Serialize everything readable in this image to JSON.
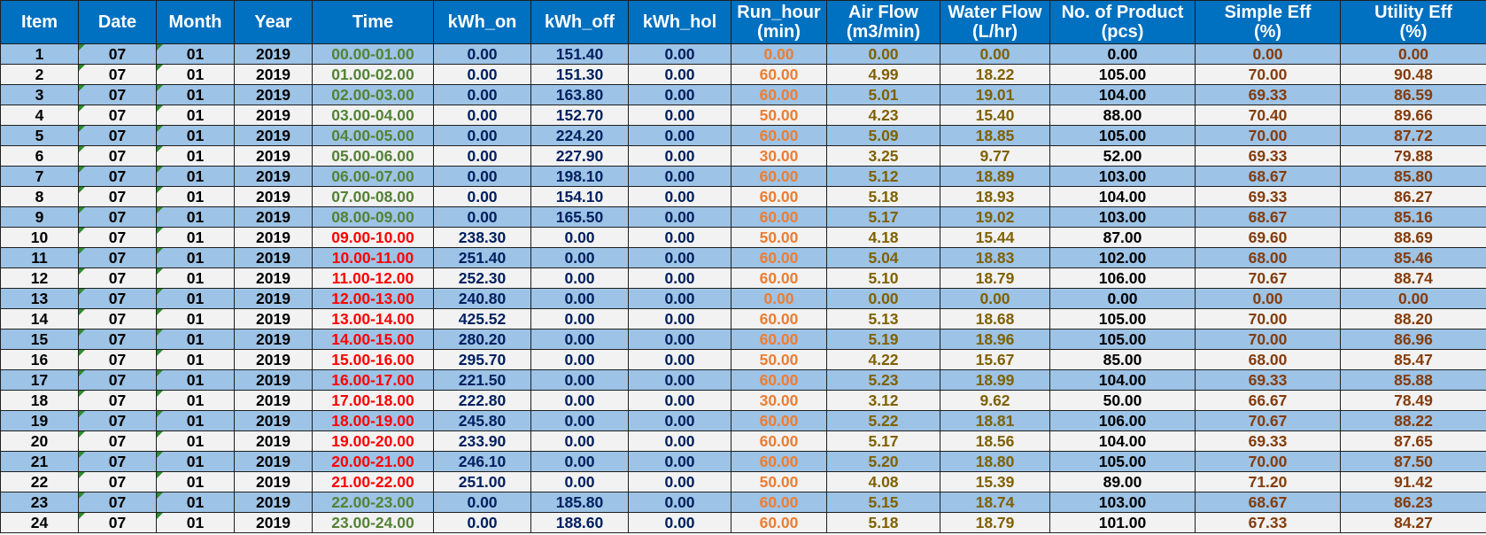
{
  "headers": [
    {
      "key": "item",
      "line1": "Item",
      "line2": ""
    },
    {
      "key": "date",
      "line1": "Date",
      "line2": ""
    },
    {
      "key": "month",
      "line1": "Month",
      "line2": ""
    },
    {
      "key": "year",
      "line1": "Year",
      "line2": ""
    },
    {
      "key": "time",
      "line1": "Time",
      "line2": ""
    },
    {
      "key": "kwh_on",
      "line1": "kWh_on",
      "line2": ""
    },
    {
      "key": "kwh_off",
      "line1": "kWh_off",
      "line2": ""
    },
    {
      "key": "kwh_hol",
      "line1": "kWh_hol",
      "line2": ""
    },
    {
      "key": "run_hour",
      "line1": "Run_hour",
      "line2": "(min)"
    },
    {
      "key": "air_flow",
      "line1": "Air Flow",
      "line2": "(m3/min)"
    },
    {
      "key": "water_flow",
      "line1": "Water Flow",
      "line2": "(L/hr)"
    },
    {
      "key": "products",
      "line1": "No. of Product",
      "line2": "(pcs)"
    },
    {
      "key": "simple_eff",
      "line1": "Simple Eff",
      "line2": "(%)"
    },
    {
      "key": "utility_eff",
      "line1": "Utility Eff",
      "line2": "(%)"
    }
  ],
  "colors": {
    "header_bg": "#0070c0",
    "header_text": "#ffffff",
    "row_odd_bg": "#9dc3e6",
    "row_even_bg": "#f2f2f2",
    "time_off_peak": "#548235",
    "time_on_peak": "#ff0000",
    "kwh_text": "#002060",
    "run_hour_text": "#ed7d31",
    "flow_text": "#806000",
    "eff_text": "#843c0c",
    "cell_marker": "#2e8b2e"
  },
  "rows": [
    {
      "item": "1",
      "date": "07",
      "month": "01",
      "year": "2019",
      "time": "00.00-01.00",
      "peak": "off",
      "kwh_on": "0.00",
      "kwh_off": "151.40",
      "kwh_hol": "0.00",
      "run_hour": "0.00",
      "air_flow": "0.00",
      "water_flow": "0.00",
      "products": "0.00",
      "simple_eff": "0.00",
      "utility_eff": "0.00"
    },
    {
      "item": "2",
      "date": "07",
      "month": "01",
      "year": "2019",
      "time": "01.00-02.00",
      "peak": "off",
      "kwh_on": "0.00",
      "kwh_off": "151.30",
      "kwh_hol": "0.00",
      "run_hour": "60.00",
      "air_flow": "4.99",
      "water_flow": "18.22",
      "products": "105.00",
      "simple_eff": "70.00",
      "utility_eff": "90.48"
    },
    {
      "item": "3",
      "date": "07",
      "month": "01",
      "year": "2019",
      "time": "02.00-03.00",
      "peak": "off",
      "kwh_on": "0.00",
      "kwh_off": "163.80",
      "kwh_hol": "0.00",
      "run_hour": "60.00",
      "air_flow": "5.01",
      "water_flow": "19.01",
      "products": "104.00",
      "simple_eff": "69.33",
      "utility_eff": "86.59"
    },
    {
      "item": "4",
      "date": "07",
      "month": "01",
      "year": "2019",
      "time": "03.00-04.00",
      "peak": "off",
      "kwh_on": "0.00",
      "kwh_off": "152.70",
      "kwh_hol": "0.00",
      "run_hour": "50.00",
      "air_flow": "4.23",
      "water_flow": "15.40",
      "products": "88.00",
      "simple_eff": "70.40",
      "utility_eff": "89.66"
    },
    {
      "item": "5",
      "date": "07",
      "month": "01",
      "year": "2019",
      "time": "04.00-05.00",
      "peak": "off",
      "kwh_on": "0.00",
      "kwh_off": "224.20",
      "kwh_hol": "0.00",
      "run_hour": "60.00",
      "air_flow": "5.09",
      "water_flow": "18.85",
      "products": "105.00",
      "simple_eff": "70.00",
      "utility_eff": "87.72"
    },
    {
      "item": "6",
      "date": "07",
      "month": "01",
      "year": "2019",
      "time": "05.00-06.00",
      "peak": "off",
      "kwh_on": "0.00",
      "kwh_off": "227.90",
      "kwh_hol": "0.00",
      "run_hour": "30.00",
      "air_flow": "3.25",
      "water_flow": "9.77",
      "products": "52.00",
      "simple_eff": "69.33",
      "utility_eff": "79.88"
    },
    {
      "item": "7",
      "date": "07",
      "month": "01",
      "year": "2019",
      "time": "06.00-07.00",
      "peak": "off",
      "kwh_on": "0.00",
      "kwh_off": "198.10",
      "kwh_hol": "0.00",
      "run_hour": "60.00",
      "air_flow": "5.12",
      "water_flow": "18.89",
      "products": "103.00",
      "simple_eff": "68.67",
      "utility_eff": "85.80"
    },
    {
      "item": "8",
      "date": "07",
      "month": "01",
      "year": "2019",
      "time": "07.00-08.00",
      "peak": "off",
      "kwh_on": "0.00",
      "kwh_off": "154.10",
      "kwh_hol": "0.00",
      "run_hour": "60.00",
      "air_flow": "5.18",
      "water_flow": "18.93",
      "products": "104.00",
      "simple_eff": "69.33",
      "utility_eff": "86.27"
    },
    {
      "item": "9",
      "date": "07",
      "month": "01",
      "year": "2019",
      "time": "08.00-09.00",
      "peak": "off",
      "kwh_on": "0.00",
      "kwh_off": "165.50",
      "kwh_hol": "0.00",
      "run_hour": "60.00",
      "air_flow": "5.17",
      "water_flow": "19.02",
      "products": "103.00",
      "simple_eff": "68.67",
      "utility_eff": "85.16"
    },
    {
      "item": "10",
      "date": "07",
      "month": "01",
      "year": "2019",
      "time": "09.00-10.00",
      "peak": "on",
      "kwh_on": "238.30",
      "kwh_off": "0.00",
      "kwh_hol": "0.00",
      "run_hour": "50.00",
      "air_flow": "4.18",
      "water_flow": "15.44",
      "products": "87.00",
      "simple_eff": "69.60",
      "utility_eff": "88.69"
    },
    {
      "item": "11",
      "date": "07",
      "month": "01",
      "year": "2019",
      "time": "10.00-11.00",
      "peak": "on",
      "kwh_on": "251.40",
      "kwh_off": "0.00",
      "kwh_hol": "0.00",
      "run_hour": "60.00",
      "air_flow": "5.04",
      "water_flow": "18.83",
      "products": "102.00",
      "simple_eff": "68.00",
      "utility_eff": "85.46"
    },
    {
      "item": "12",
      "date": "07",
      "month": "01",
      "year": "2019",
      "time": "11.00-12.00",
      "peak": "on",
      "kwh_on": "252.30",
      "kwh_off": "0.00",
      "kwh_hol": "0.00",
      "run_hour": "60.00",
      "air_flow": "5.10",
      "water_flow": "18.79",
      "products": "106.00",
      "simple_eff": "70.67",
      "utility_eff": "88.74"
    },
    {
      "item": "13",
      "date": "07",
      "month": "01",
      "year": "2019",
      "time": "12.00-13.00",
      "peak": "on",
      "kwh_on": "240.80",
      "kwh_off": "0.00",
      "kwh_hol": "0.00",
      "run_hour": "0.00",
      "air_flow": "0.00",
      "water_flow": "0.00",
      "products": "0.00",
      "simple_eff": "0.00",
      "utility_eff": "0.00"
    },
    {
      "item": "14",
      "date": "07",
      "month": "01",
      "year": "2019",
      "time": "13.00-14.00",
      "peak": "on",
      "kwh_on": "425.52",
      "kwh_off": "0.00",
      "kwh_hol": "0.00",
      "run_hour": "60.00",
      "air_flow": "5.13",
      "water_flow": "18.68",
      "products": "105.00",
      "simple_eff": "70.00",
      "utility_eff": "88.20"
    },
    {
      "item": "15",
      "date": "07",
      "month": "01",
      "year": "2019",
      "time": "14.00-15.00",
      "peak": "on",
      "kwh_on": "280.20",
      "kwh_off": "0.00",
      "kwh_hol": "0.00",
      "run_hour": "60.00",
      "air_flow": "5.19",
      "water_flow": "18.96",
      "products": "105.00",
      "simple_eff": "70.00",
      "utility_eff": "86.96"
    },
    {
      "item": "16",
      "date": "07",
      "month": "01",
      "year": "2019",
      "time": "15.00-16.00",
      "peak": "on",
      "kwh_on": "295.70",
      "kwh_off": "0.00",
      "kwh_hol": "0.00",
      "run_hour": "50.00",
      "air_flow": "4.22",
      "water_flow": "15.67",
      "products": "85.00",
      "simple_eff": "68.00",
      "utility_eff": "85.47"
    },
    {
      "item": "17",
      "date": "07",
      "month": "01",
      "year": "2019",
      "time": "16.00-17.00",
      "peak": "on",
      "kwh_on": "221.50",
      "kwh_off": "0.00",
      "kwh_hol": "0.00",
      "run_hour": "60.00",
      "air_flow": "5.23",
      "water_flow": "18.99",
      "products": "104.00",
      "simple_eff": "69.33",
      "utility_eff": "85.88"
    },
    {
      "item": "18",
      "date": "07",
      "month": "01",
      "year": "2019",
      "time": "17.00-18.00",
      "peak": "on",
      "kwh_on": "222.80",
      "kwh_off": "0.00",
      "kwh_hol": "0.00",
      "run_hour": "30.00",
      "air_flow": "3.12",
      "water_flow": "9.62",
      "products": "50.00",
      "simple_eff": "66.67",
      "utility_eff": "78.49"
    },
    {
      "item": "19",
      "date": "07",
      "month": "01",
      "year": "2019",
      "time": "18.00-19.00",
      "peak": "on",
      "kwh_on": "245.80",
      "kwh_off": "0.00",
      "kwh_hol": "0.00",
      "run_hour": "60.00",
      "air_flow": "5.22",
      "water_flow": "18.81",
      "products": "106.00",
      "simple_eff": "70.67",
      "utility_eff": "88.22"
    },
    {
      "item": "20",
      "date": "07",
      "month": "01",
      "year": "2019",
      "time": "19.00-20.00",
      "peak": "on",
      "kwh_on": "233.90",
      "kwh_off": "0.00",
      "kwh_hol": "0.00",
      "run_hour": "60.00",
      "air_flow": "5.17",
      "water_flow": "18.56",
      "products": "104.00",
      "simple_eff": "69.33",
      "utility_eff": "87.65"
    },
    {
      "item": "21",
      "date": "07",
      "month": "01",
      "year": "2019",
      "time": "20.00-21.00",
      "peak": "on",
      "kwh_on": "246.10",
      "kwh_off": "0.00",
      "kwh_hol": "0.00",
      "run_hour": "60.00",
      "air_flow": "5.20",
      "water_flow": "18.80",
      "products": "105.00",
      "simple_eff": "70.00",
      "utility_eff": "87.50"
    },
    {
      "item": "22",
      "date": "07",
      "month": "01",
      "year": "2019",
      "time": "21.00-22.00",
      "peak": "on",
      "kwh_on": "251.00",
      "kwh_off": "0.00",
      "kwh_hol": "0.00",
      "run_hour": "50.00",
      "air_flow": "4.08",
      "water_flow": "15.39",
      "products": "89.00",
      "simple_eff": "71.20",
      "utility_eff": "91.42"
    },
    {
      "item": "23",
      "date": "07",
      "month": "01",
      "year": "2019",
      "time": "22.00-23.00",
      "peak": "off",
      "kwh_on": "0.00",
      "kwh_off": "185.80",
      "kwh_hol": "0.00",
      "run_hour": "60.00",
      "air_flow": "5.15",
      "water_flow": "18.74",
      "products": "103.00",
      "simple_eff": "68.67",
      "utility_eff": "86.23"
    },
    {
      "item": "24",
      "date": "07",
      "month": "01",
      "year": "2019",
      "time": "23.00-24.00",
      "peak": "off",
      "kwh_on": "0.00",
      "kwh_off": "188.60",
      "kwh_hol": "0.00",
      "run_hour": "60.00",
      "air_flow": "5.18",
      "water_flow": "18.79",
      "products": "101.00",
      "simple_eff": "67.33",
      "utility_eff": "84.27"
    }
  ]
}
